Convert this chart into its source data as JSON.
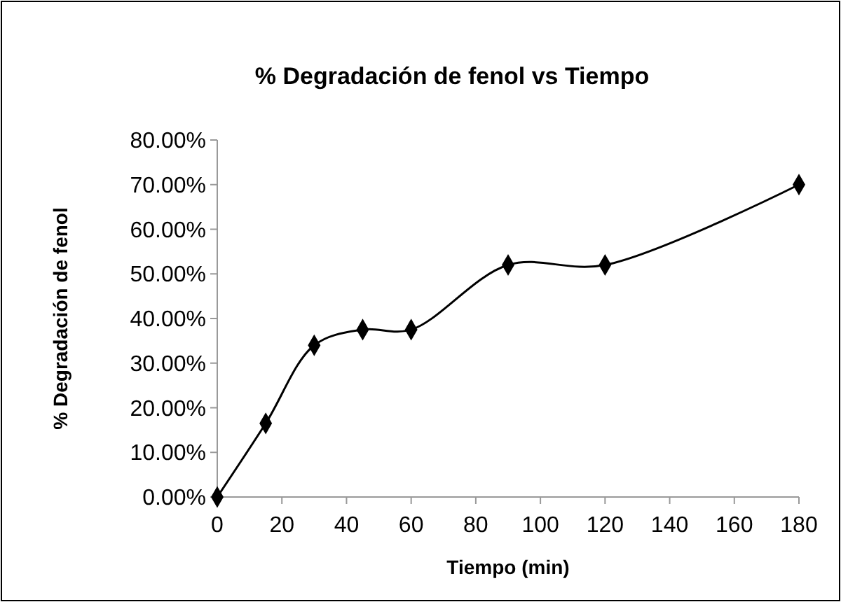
{
  "chart_data": {
    "type": "line",
    "title": "% Degradación de fenol vs Tiempo",
    "xlabel": "Tiempo (min)",
    "ylabel": "% Degradación de fenol",
    "x": [
      0,
      15,
      30,
      45,
      60,
      90,
      120,
      180
    ],
    "series": [
      {
        "color": "#000000",
        "values": [
          0,
          16.5,
          34,
          37.5,
          37.5,
          52,
          52,
          70
        ]
      }
    ],
    "xlim": [
      0,
      180
    ],
    "xticks": [
      0,
      20,
      40,
      60,
      80,
      100,
      120,
      140,
      160,
      180
    ],
    "ylim": [
      0,
      80
    ],
    "yticks": [
      {
        "value": 0,
        "label": "0.00%"
      },
      {
        "value": 10,
        "label": "10.00%"
      },
      {
        "value": 20,
        "label": "20.00%"
      },
      {
        "value": 30,
        "label": "30.00%"
      },
      {
        "value": 40,
        "label": "40.00%"
      },
      {
        "value": 50,
        "label": "50.00%"
      },
      {
        "value": 60,
        "label": "60.00%"
      },
      {
        "value": 70,
        "label": "70.00%"
      },
      {
        "value": 80,
        "label": "80.00%"
      }
    ],
    "marker": "diamond",
    "line_style": "solid",
    "grid": false
  }
}
